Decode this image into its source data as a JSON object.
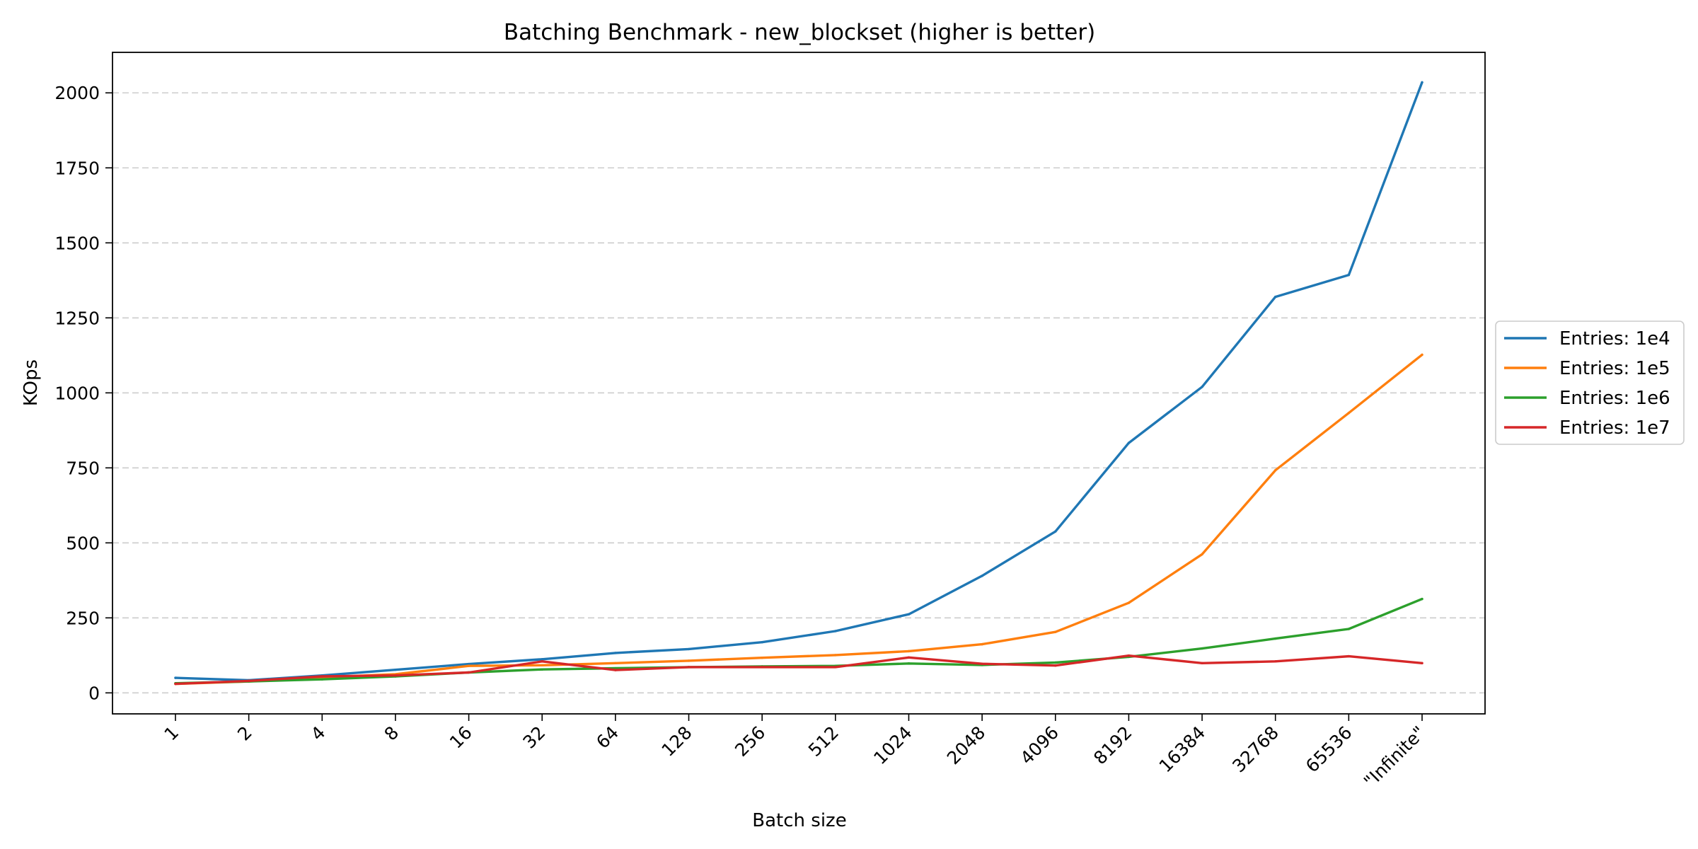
{
  "chart_data": {
    "type": "line",
    "title": "Batching Benchmark - new_blockset (higher is better)",
    "xlabel": "Batch size",
    "ylabel": "KOps",
    "categories": [
      "1",
      "2",
      "4",
      "8",
      "16",
      "32",
      "64",
      "128",
      "256",
      "512",
      "1024",
      "2048",
      "4096",
      "8192",
      "16384",
      "32768",
      "65536",
      "\"Infinite\""
    ],
    "yticks": [
      0,
      250,
      500,
      750,
      1000,
      1250,
      1500,
      1750,
      2000
    ],
    "ylim": [
      -70,
      2135
    ],
    "grid": "horizontal dashed",
    "legend_position": "right",
    "series": [
      {
        "name": "Entries: 1e4",
        "color": "#1f77b4",
        "values": [
          50,
          42,
          58,
          77,
          96,
          112,
          133,
          146,
          169,
          206,
          262,
          390,
          538,
          833,
          1020,
          1320,
          1393,
          2035
        ]
      },
      {
        "name": "Entries: 1e5",
        "color": "#ff7f0e",
        "values": [
          30,
          38,
          52,
          62,
          90,
          92,
          99,
          107,
          117,
          126,
          139,
          162,
          203,
          300,
          462,
          742,
          933,
          1127
        ]
      },
      {
        "name": "Entries: 1e6",
        "color": "#2ca02c",
        "values": [
          32,
          38,
          45,
          55,
          68,
          78,
          82,
          86,
          88,
          90,
          98,
          93,
          101,
          120,
          148,
          181,
          213,
          313
        ]
      },
      {
        "name": "Entries: 1e7",
        "color": "#d62728",
        "values": [
          30,
          40,
          55,
          58,
          68,
          105,
          76,
          86,
          86,
          86,
          118,
          97,
          91,
          124,
          99,
          105,
          122,
          99
        ]
      }
    ]
  }
}
